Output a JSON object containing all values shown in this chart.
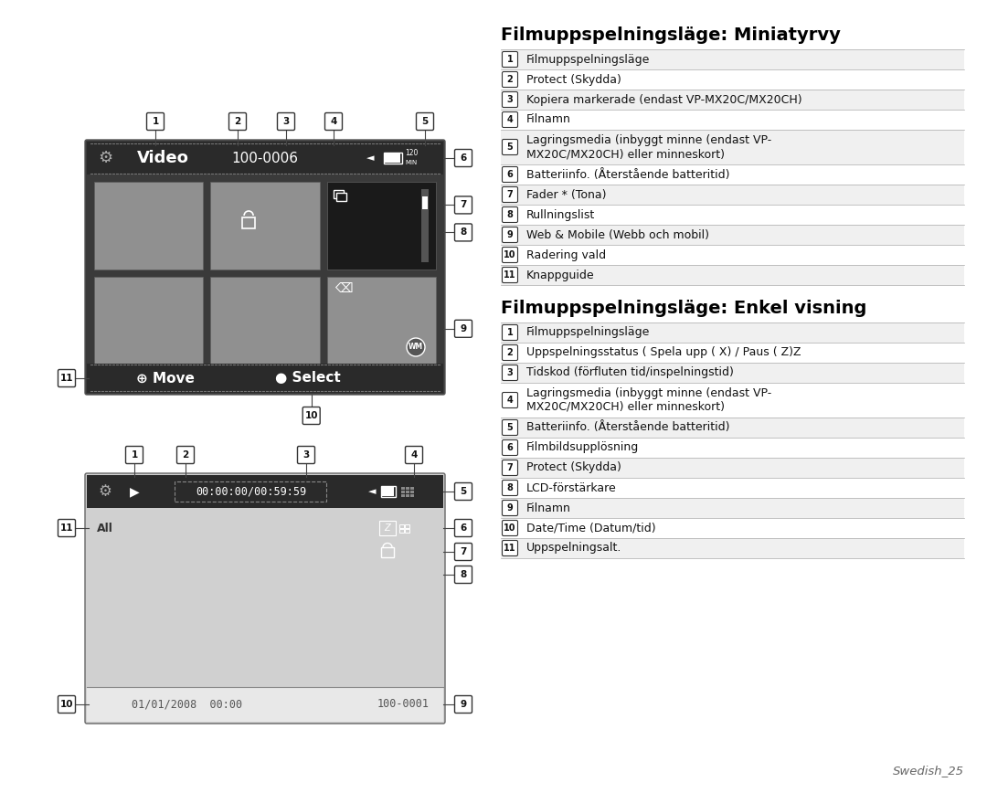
{
  "bg_color": "#ffffff",
  "title1": "Filmuppspelningsläge: Miniatyrvy",
  "title2": "Filmuppspelningsläge: Enkel visning",
  "section1_items": [
    [
      "1",
      "Filmuppspelningsläge"
    ],
    [
      "2",
      "Protect (Skydda)"
    ],
    [
      "3",
      "Kopiera markerade (endast VP-MX20C/MX20CH)"
    ],
    [
      "4",
      "Filnamn"
    ],
    [
      "5",
      "Lagringsmedia (inbyggt minne (endast VP-\nMX20C/MX20CH) eller minneskort)"
    ],
    [
      "6",
      "Batteriinfo. (Återstående batteritid)"
    ],
    [
      "7",
      "Fader * (Tona)"
    ],
    [
      "8",
      "Rullningslist"
    ],
    [
      "9",
      "Web & Mobile (Webb och mobil)"
    ],
    [
      "10",
      "Radering vald"
    ],
    [
      "11",
      "Knappguide"
    ]
  ],
  "section2_items": [
    [
      "1",
      "Filmuppspelningsläge"
    ],
    [
      "2",
      "Uppspelningsstatus ( Spela upp ( X) / Paus ( Z)Z"
    ],
    [
      "3",
      "Tidskod (förfluten tid/inspelningstid)"
    ],
    [
      "4",
      "Lagringsmedia (inbyggt minne (endast VP-\nMX20C/MX20CH) eller minneskort)"
    ],
    [
      "5",
      "Batteriinfo. (Återstående batteritid)"
    ],
    [
      "6",
      "Filmbildsupplösning"
    ],
    [
      "7",
      "Protect (Skydda)"
    ],
    [
      "8",
      "LCD-förstärkare"
    ],
    [
      "9",
      "Filnamn"
    ],
    [
      "10",
      "Date/Time (Datum/tid)"
    ],
    [
      "11",
      "Uppspelningsalt."
    ]
  ],
  "footer_text": "Swedish_25",
  "screen1_bg": "#3a3a3a",
  "screen1_topbar": "#2a2a2a",
  "screen1_botbar": "#2a2a2a",
  "screen2_bg": "#d0d0d0",
  "screen2_topbar": "#2a2a2a",
  "screen2_botbar": "#c8c8c8",
  "thumb_gray": "#909090",
  "thumb_dark": "#1a1a1a"
}
